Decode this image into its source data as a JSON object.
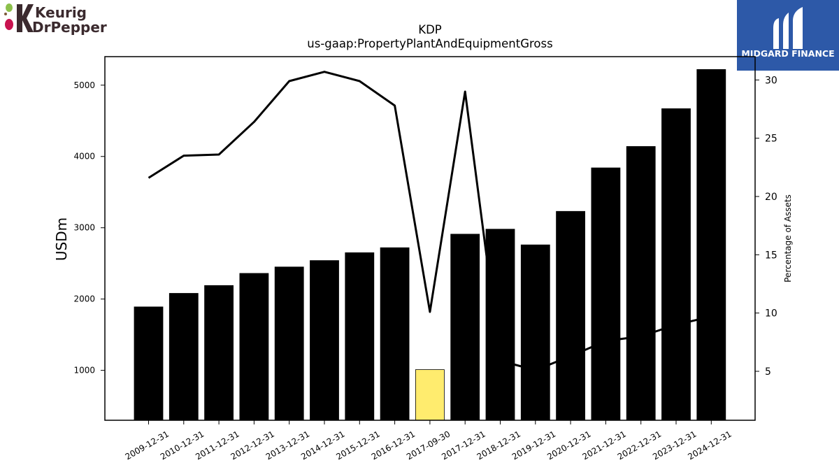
{
  "branding": {
    "left_logo_line1": "Keurig",
    "left_logo_line2": "DrPepper",
    "right_logo_text": "MIDGARD FINANCE",
    "right_logo_bg": "#2d59a8"
  },
  "chart_data": {
    "type": "bar",
    "title": "KDP",
    "subtitle": "us-gaap:PropertyPlantAndEquipmentGross",
    "ylabel": "USDm",
    "y2label": "Percentage of Assets",
    "categories": [
      "2009-12-31",
      "2010-12-31",
      "2011-12-31",
      "2012-12-31",
      "2013-12-31",
      "2014-12-31",
      "2015-12-31",
      "2016-12-31",
      "2017-09-30",
      "2017-12-31",
      "2018-12-31",
      "2019-12-31",
      "2020-12-31",
      "2021-12-31",
      "2022-12-31",
      "2023-12-31",
      "2024-12-31"
    ],
    "series": [
      {
        "type": "bar",
        "axis": "left",
        "values": [
          1890,
          2080,
          2190,
          2360,
          2450,
          2540,
          2650,
          2720,
          1010,
          2910,
          2980,
          2760,
          3230,
          3840,
          4140,
          4670,
          5220
        ],
        "colors": [
          "#000000",
          "#000000",
          "#000000",
          "#000000",
          "#000000",
          "#000000",
          "#000000",
          "#000000",
          "#ffec6e",
          "#000000",
          "#000000",
          "#000000",
          "#000000",
          "#000000",
          "#000000",
          "#000000",
          "#000000"
        ]
      },
      {
        "type": "line",
        "axis": "right",
        "color": "#000000",
        "values": [
          21.6,
          23.5,
          23.6,
          26.4,
          29.9,
          30.7,
          29.9,
          27.8,
          10.1,
          29.0,
          5.9,
          5.1,
          6.3,
          7.6,
          8.0,
          9.0,
          9.7
        ]
      }
    ],
    "ylim": [
      300,
      5400
    ],
    "y_ticks": [
      1000,
      2000,
      3000,
      4000,
      5000
    ],
    "y2lim": [
      0.8,
      32.0
    ],
    "y2_ticks": [
      5,
      10,
      15,
      20,
      25,
      30
    ],
    "grid": false,
    "legend": "none"
  }
}
